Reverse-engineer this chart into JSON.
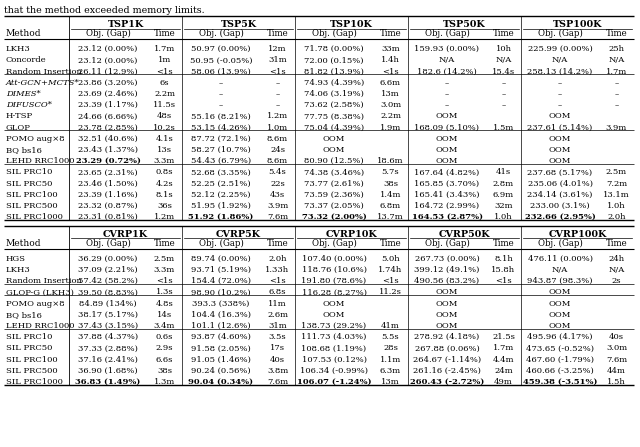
{
  "caption": "that the method exceeded memory limits.",
  "tsp_groups": [
    "TSP1K",
    "TSP5K",
    "TSP10K",
    "TSP50K",
    "TSP100K"
  ],
  "cvrp_groups": [
    "CVRP1K",
    "CVRP5K",
    "CVRP10K",
    "CVRP50K",
    "CVRP100K"
  ],
  "tsp_sections": [
    [
      [
        "LKH3",
        "23.12 (0.00%)",
        "1.7m",
        "50.97 (0.00%)",
        "12m",
        "71.78 (0.00%)",
        "33m",
        "159.93 (0.00%)",
        "10h",
        "225.99 (0.00%)",
        "25h"
      ],
      [
        "Concorde",
        "23.12 (0.00%)",
        "1m",
        "50.95 (-0.05%)",
        "31m",
        "72.00 (0.15%)",
        "1.4h",
        "N/A",
        "N/A",
        "N/A",
        "N/A"
      ],
      [
        "Random Insertion",
        "26.11 (12.9%)",
        "<1s",
        "58.06 (13.9%)",
        "<1s",
        "81.82 (13.9%)",
        "<1s",
        "182.6 (14.2%)",
        "15.4s",
        "258.13 (14.2%)",
        "1.7m"
      ]
    ],
    [
      [
        "Att-GCN+MCTS*",
        "23.86 (3.20%)",
        "6s",
        "–",
        "–",
        "74.93 (4.39%)",
        "6.6m",
        "–",
        "–",
        "–",
        "–"
      ],
      [
        "DIMES*",
        "23.69 (2.46%)",
        "2.2m",
        "–",
        "–",
        "74.06 (3.19%)",
        "13m",
        "–",
        "–",
        "–",
        "–"
      ],
      [
        "DIFUSCO*",
        "23.39 (1.17%)",
        "11.5s",
        "–",
        "–",
        "73.62 (2.58%)",
        "3.0m",
        "–",
        "–",
        "–",
        "–"
      ],
      [
        "H-TSP",
        "24.66 (6.66%)",
        "48s",
        "55.16 (8.21%)",
        "1.2m",
        "77.75 (8.38%)",
        "2.2m",
        "OOM",
        "",
        "OOM",
        ""
      ],
      [
        "GLOP",
        "23.78 (2.85%)",
        "10.2s",
        "53.15 (4.26%)",
        "1.0m",
        "75.04 (4.39%)",
        "1.9m",
        "168.09 (5.10%)",
        "1.5m",
        "237.61 (5.14%)",
        "3.9m"
      ]
    ],
    [
      [
        "POMO aug×8",
        "32.51 (40.6%)",
        "4.1s",
        "87.72 (72.1%)",
        "8.6m",
        "OOM",
        "",
        "OOM",
        "",
        "OOM",
        ""
      ],
      [
        "BQ bs16",
        "23.43 (1.37%)",
        "13s",
        "58.27 (10.7%)",
        "24s",
        "OOM",
        "",
        "OOM",
        "",
        "OOM",
        ""
      ],
      [
        "LEHD RRC1000",
        "B23.29 (0.72%)",
        "3.3m",
        "54.43 (6.79%)",
        "8.6m",
        "80.90 (12.5%)",
        "18.6m",
        "OOM",
        "",
        "OOM",
        ""
      ]
    ],
    [
      [
        "SIL PRC10",
        "23.65 (2.31%)",
        "0.8s",
        "52.68 (3.35%)",
        "5.4s",
        "74.38 (3.46%)",
        "5.7s",
        "167.64 (4.82%)",
        "41s",
        "237.68 (5.17%)",
        "2.5m"
      ],
      [
        "SIL PRC50",
        "23.46 (1.50%)",
        "4.2s",
        "52.25 (2.51%)",
        "22s",
        "73.77 (2.61%)",
        "38s",
        "165.85 (3.70%)",
        "2.8m",
        "235.06 (4.01%)",
        "7.2m"
      ],
      [
        "SIL PRC100",
        "23.39 (1.16%)",
        "8.1s",
        "52.12 (2.25%)",
        "43s",
        "73.59 (2.36%)",
        "1.4m",
        "165.41 (3.43%)",
        "6.9m",
        "234.14 (3.61%)",
        "13.1m"
      ],
      [
        "SIL PRC500",
        "23.32 (0.87%)",
        "36s",
        "51.95 (1.92%)",
        "3.9m",
        "73.37 (2.05%)",
        "6.8m",
        "164.72 (2.99%)",
        "32m",
        "233.00 (3.1%)",
        "1.0h"
      ],
      [
        "SIL PRC1000",
        "23.31 (0.81%)",
        "1.2m",
        "B51.92 (1.86%)",
        "7.6m",
        "B73.32 (2.00%)",
        "13.7m",
        "B164.53 (2.87%)",
        "1.0h",
        "B232.66 (2.95%)",
        "2.0h"
      ]
    ]
  ],
  "cvrp_sections": [
    [
      [
        "HGS",
        "36.29 (0.00%)",
        "2.5m",
        "89.74 (0.00%)",
        "2.0h",
        "107.40 (0.00%)",
        "5.0h",
        "267.73 (0.00%)",
        "8.1h",
        "476.11 (0.00%)",
        "24h"
      ],
      [
        "LKH3",
        "37.09 (2.21%)",
        "3.3m",
        "93.71 (5.19%)",
        "1.33h",
        "118.76 (10.6%)",
        "1.74h",
        "399.12 (49.1%)",
        "15.8h",
        "N/A",
        "N/A"
      ],
      [
        "Random Insertion",
        "57.42 (58.2%)",
        "<1s",
        "154.4 (72.0%)",
        "<1s",
        "191.80 (78.6%)",
        "<1s",
        "490.56 (83.2%)",
        "<1s",
        "943.87 (98.3%)",
        "2s"
      ]
    ],
    [
      [
        "GLOP-G (LKH3)",
        "39.50 (8.83%)",
        "1.3s",
        "98.90 (10.2%)",
        "6.8s",
        "116.28 (8.27%)",
        "11.2s",
        "OOM",
        "",
        "OOM",
        ""
      ]
    ],
    [
      [
        "POMO aug×8",
        "84.89 (134%)",
        "4.8s",
        "393.3 (338%)",
        "11m",
        "OOM",
        "",
        "OOM",
        "",
        "OOM",
        ""
      ],
      [
        "BQ bs16",
        "38.17 (5.17%)",
        "14s",
        "104.4 (16.3%)",
        "2.6m",
        "OOM",
        "",
        "OOM",
        "",
        "OOM",
        ""
      ],
      [
        "LEHD RRC1000",
        "37.43 (3.15%)",
        "3.4m",
        "101.1 (12.6%)",
        "31m",
        "138.73 (29.2%)",
        "41m",
        "OOM",
        "",
        "OOM",
        ""
      ]
    ],
    [
      [
        "SIL PRC10",
        "37.88 (4.37%)",
        "0.6s",
        "93.87 (4.60%)",
        "3.5s",
        "111.73 (4.03%)",
        "5.5s",
        "278.92 (4.18%)",
        "21.5s",
        "495.96 (4.17%)",
        "40s"
      ],
      [
        "SIL PRC50",
        "37.33 (2.88%)",
        "2.9s",
        "91.58 (2.05%)",
        "17s",
        "108.68 (1.19%)",
        "28s",
        "267.88 (0.06%)",
        "1.7m",
        "473.65 (-0.52%)",
        "3.0m"
      ],
      [
        "SIL PRC100",
        "37.16 (2.41%)",
        "6.6s",
        "91.05 (1.46%)",
        "40s",
        "107.53 (0.12%)",
        "1.1m",
        "264.67 (-1.14%)",
        "4.4m",
        "467.60 (-1.79%)",
        "7.6m"
      ],
      [
        "SIL PRC500",
        "36.90 (1.68%)",
        "38s",
        "90.24 (0.56%)",
        "3.8m",
        "106.34 (-0.99%)",
        "6.3m",
        "261.16 (-2.45%)",
        "24m",
        "460.66 (-3.25%)",
        "44m"
      ],
      [
        "SIL PRC1000",
        "B36.83 (1.49%)",
        "1.3m",
        "B90.04 (0.34%)",
        "7.6m",
        "B106.07 (-1.24%)",
        "13m",
        "B260.43 (-2.72%)",
        "49m",
        "B459.38 (-3.51%)",
        "1.5h"
      ]
    ]
  ]
}
